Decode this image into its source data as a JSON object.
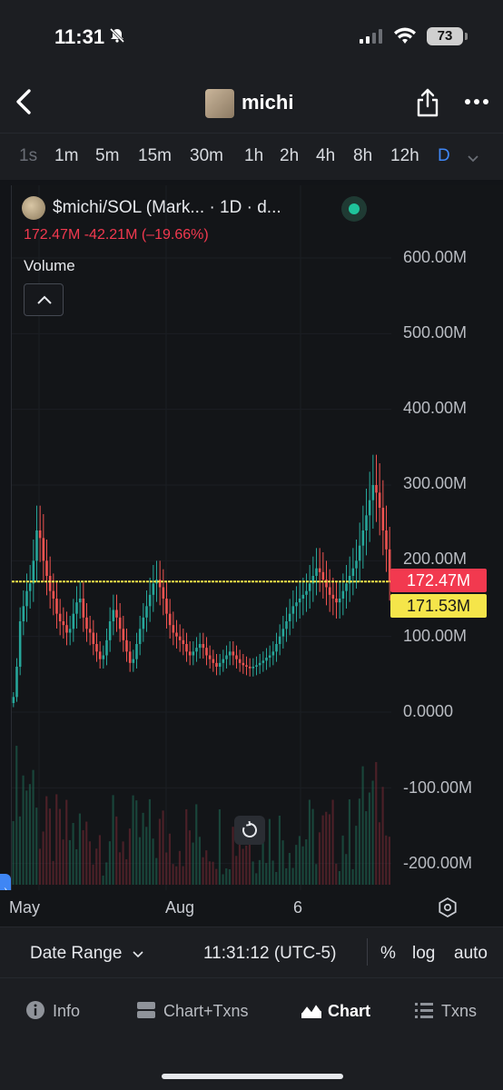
{
  "status_bar": {
    "time": "11:31",
    "battery": "73"
  },
  "header": {
    "title": "michi"
  },
  "timeframes": [
    {
      "label": "1s",
      "state": "dim"
    },
    {
      "label": "1m",
      "state": "normal"
    },
    {
      "label": "5m",
      "state": "normal"
    },
    {
      "label": "15m",
      "state": "normal"
    },
    {
      "label": "30m",
      "state": "normal"
    },
    {
      "label": "1h",
      "state": "normal"
    },
    {
      "label": "2h",
      "state": "normal"
    },
    {
      "label": "4h",
      "state": "normal"
    },
    {
      "label": "8h",
      "state": "normal"
    },
    {
      "label": "12h",
      "state": "normal"
    },
    {
      "label": "D",
      "state": "active"
    }
  ],
  "chart": {
    "symbol_title": "$michi/SOL (Mark... · 1D · d...",
    "price_line": "172.47M  -42.21M (–19.66%)",
    "volume_label": "Volume",
    "y_axis_labels": [
      "600.00M",
      "500.00M",
      "400.00M",
      "300.00M",
      "200.00M",
      "100.00M",
      "0.0000",
      "-100.00M",
      "-200.00M"
    ],
    "price_tag_current": "172.47M",
    "price_tag_alt": "171.53M",
    "x_axis_labels": [
      "May",
      "Aug",
      "6"
    ]
  },
  "chart_data": {
    "type": "candlestick",
    "title": "$michi/SOL (Mark... · 1D · d...",
    "ylim": [
      -250,
      650
    ],
    "y_unit": "M",
    "current_price": 172.47,
    "alt_price": 171.53,
    "change": -42.21,
    "change_pct": -19.66,
    "x_ticks": [
      "May",
      "Aug",
      "6"
    ],
    "grid": true,
    "close_series_approx": [
      20,
      60,
      120,
      140,
      160,
      170,
      200,
      240,
      230,
      200,
      180,
      160,
      150,
      130,
      120,
      115,
      105,
      110,
      130,
      145,
      150,
      125,
      110,
      105,
      90,
      80,
      70,
      75,
      95,
      120,
      135,
      125,
      110,
      95,
      80,
      65,
      70,
      90,
      110,
      125,
      140,
      155,
      170,
      175,
      165,
      150,
      130,
      115,
      105,
      100,
      95,
      90,
      80,
      75,
      80,
      85,
      90,
      85,
      75,
      70,
      65,
      60,
      65,
      70,
      75,
      80,
      75,
      70,
      65,
      62,
      60,
      58,
      60,
      62,
      65,
      68,
      72,
      75,
      80,
      90,
      100,
      110,
      120,
      130,
      140,
      145,
      150,
      155,
      160,
      170,
      180,
      190,
      185,
      175,
      165,
      155,
      150,
      145,
      150,
      160,
      170,
      180,
      190,
      200,
      220,
      240,
      260,
      280,
      300,
      290,
      270,
      240,
      215,
      172
    ]
  },
  "controls": {
    "date_range": "Date Range",
    "time": "11:31:12 (UTC-5)",
    "percent": "%",
    "log": "log",
    "auto": "auto"
  },
  "nav": [
    {
      "label": "Info",
      "icon": "info-icon",
      "active": false
    },
    {
      "label": "Chart+Txns",
      "icon": "chart-txns-icon",
      "active": false
    },
    {
      "label": "Chart",
      "icon": "area-chart-icon",
      "active": true
    },
    {
      "label": "Txns",
      "icon": "list-icon",
      "active": false
    }
  ]
}
